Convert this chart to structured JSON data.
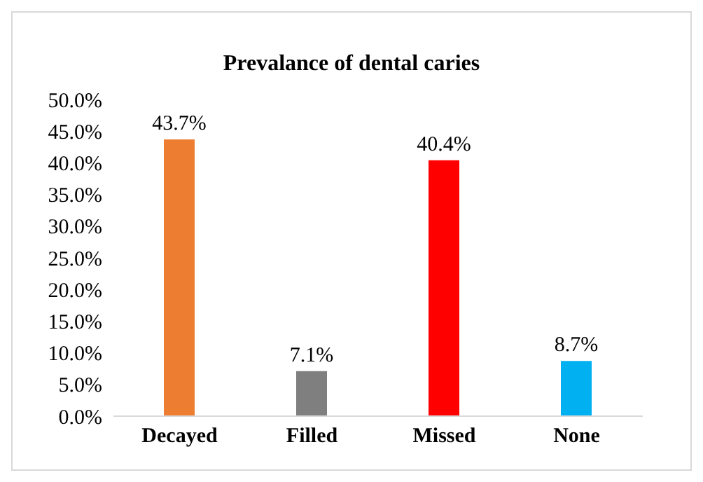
{
  "chart_data": {
    "type": "bar",
    "title": "Prevalance of dental caries",
    "categories": [
      "Decayed",
      "Filled",
      "Missed",
      "None"
    ],
    "values": [
      43.7,
      7.1,
      40.4,
      8.7
    ],
    "colors": [
      "#ed7d31",
      "#7f7f7f",
      "#ff0000",
      "#00b0f0"
    ],
    "value_labels": [
      "43.7%",
      "7.1%",
      "40.4%",
      "8.7%"
    ],
    "ylim": [
      0,
      50
    ],
    "yticks": [
      {
        "value": 0,
        "label": "0.0%"
      },
      {
        "value": 5,
        "label": "5.0%"
      },
      {
        "value": 10,
        "label": "10.0%"
      },
      {
        "value": 15,
        "label": "15.0%"
      },
      {
        "value": 20,
        "label": "20.0%"
      },
      {
        "value": 25,
        "label": "25.0%"
      },
      {
        "value": 30,
        "label": "30.0%"
      },
      {
        "value": 35,
        "label": "35.0%"
      },
      {
        "value": 40,
        "label": "40.0%"
      },
      {
        "value": 45,
        "label": "45.0%"
      },
      {
        "value": 50,
        "label": "50.0%"
      }
    ],
    "grid": false,
    "legend": false
  }
}
